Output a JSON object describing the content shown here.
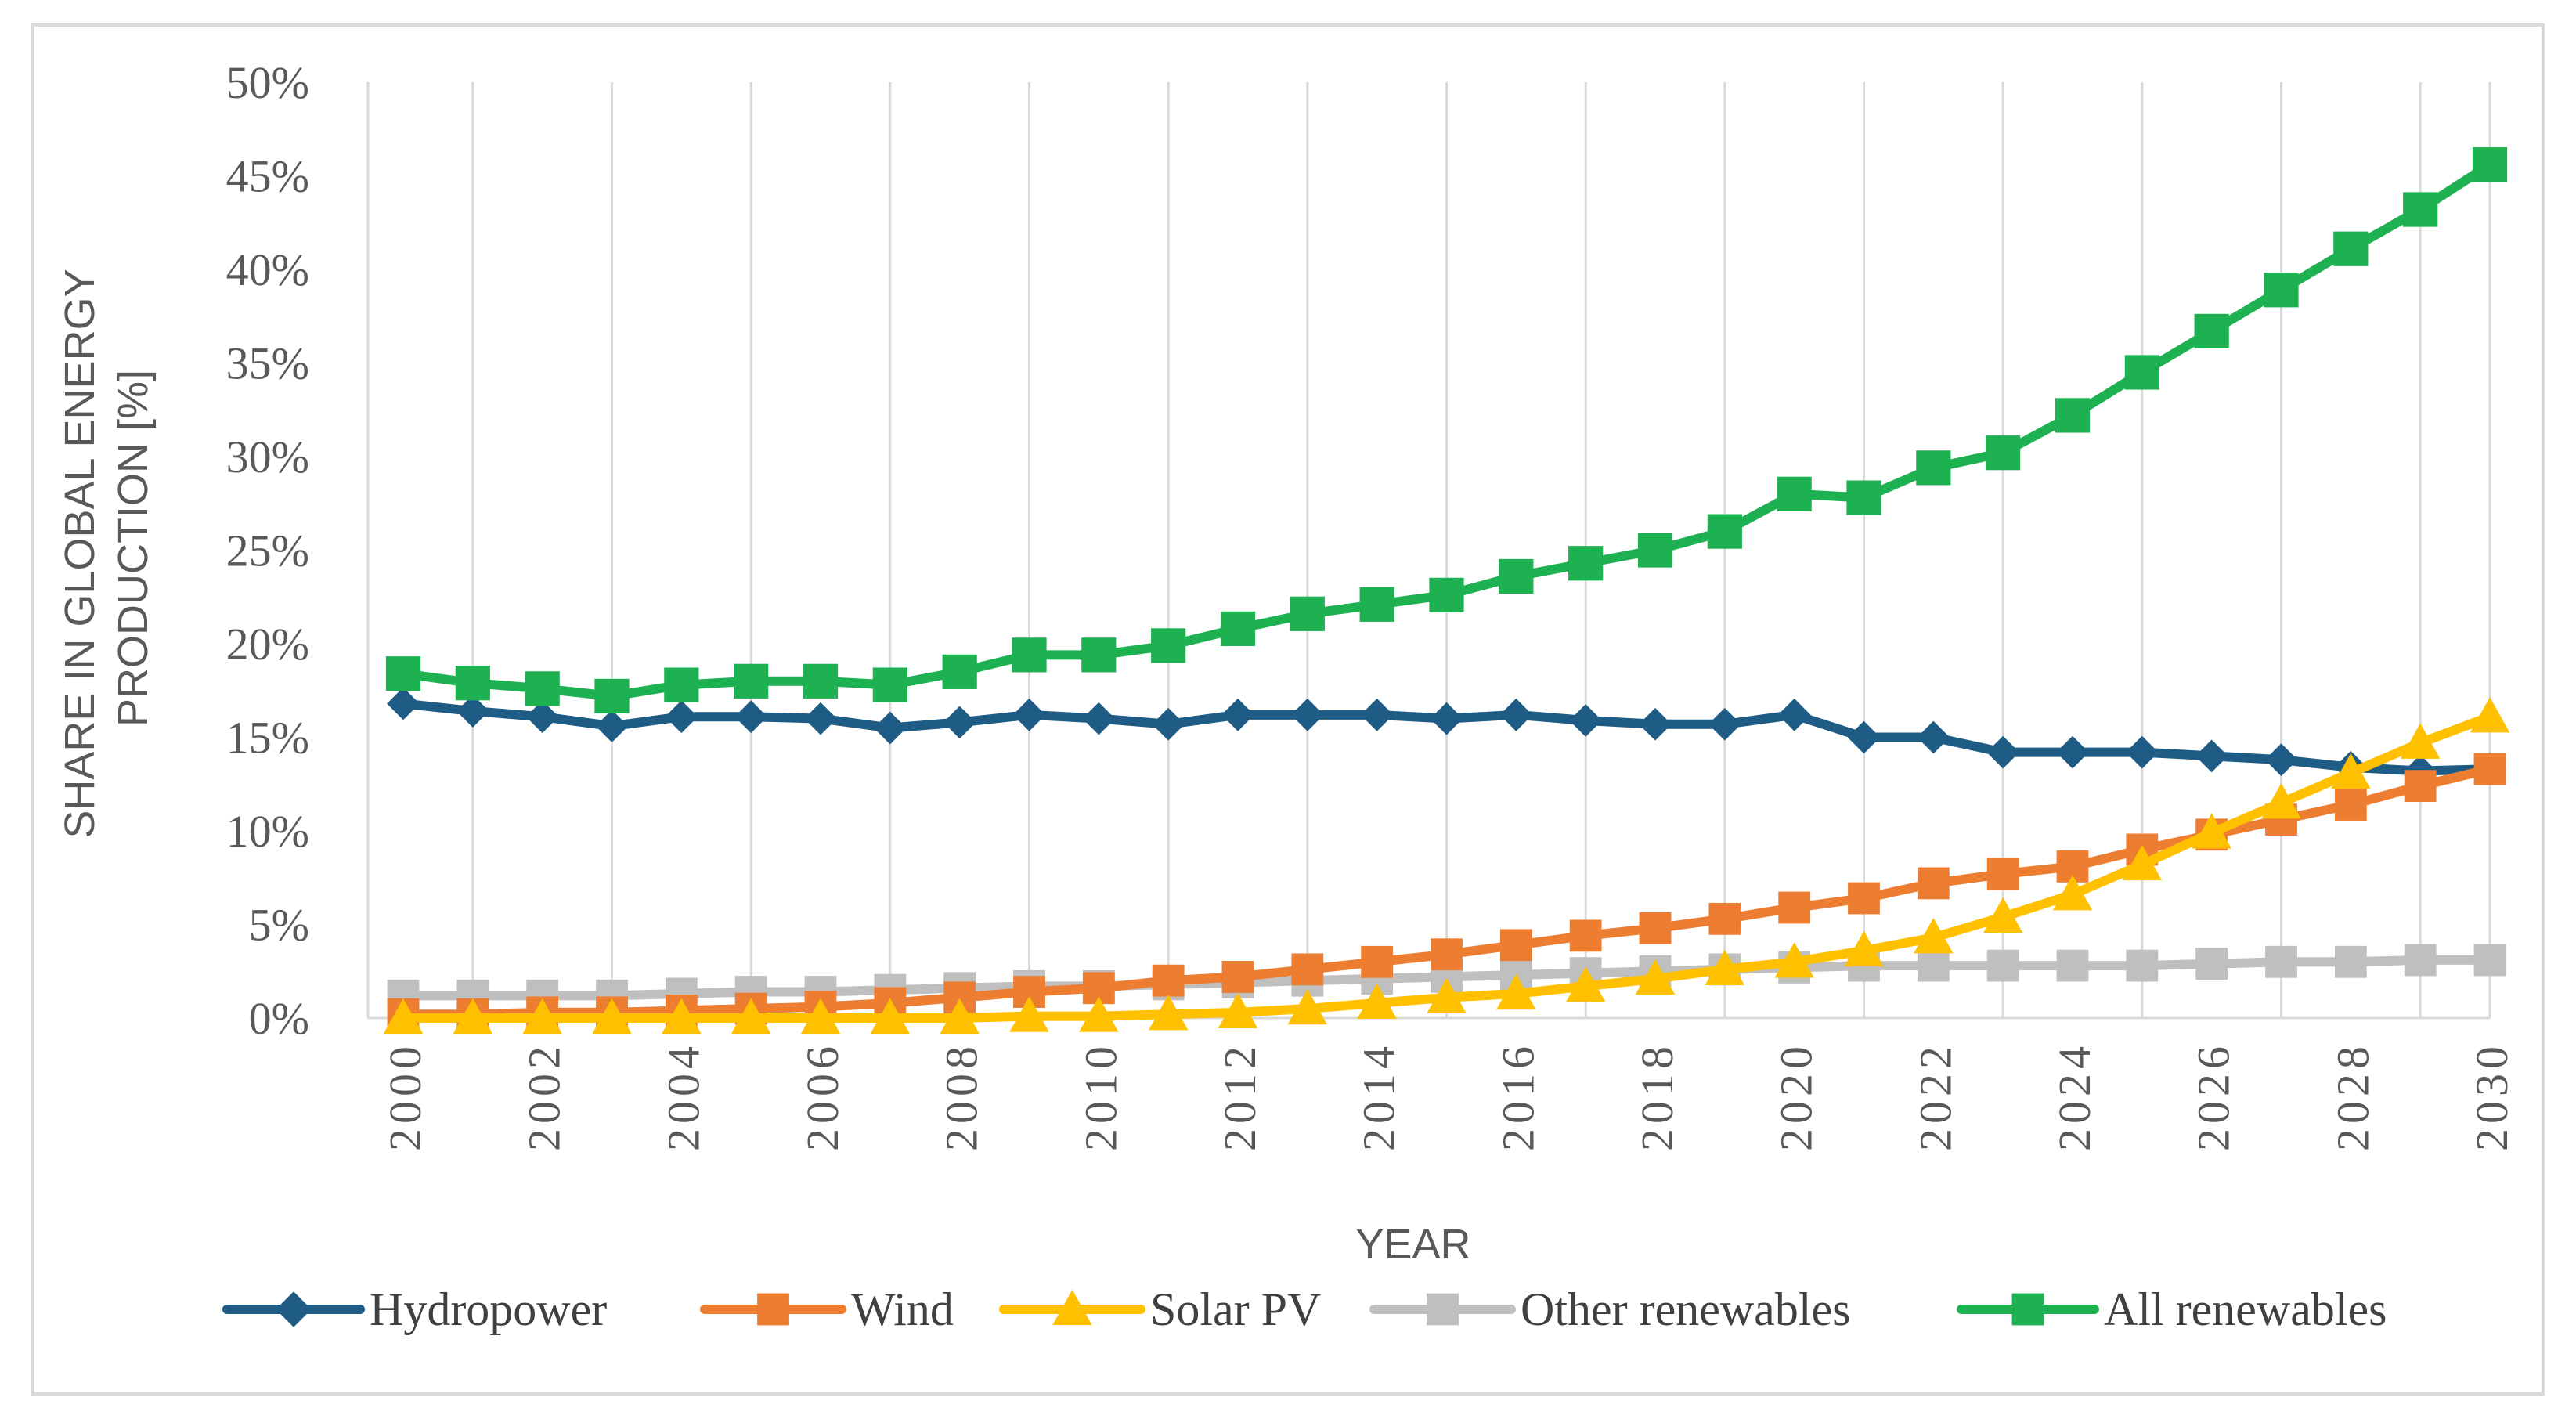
{
  "chart_data": {
    "type": "line",
    "title": "",
    "xlabel": "YEAR",
    "ylabel_line1": "SHARE IN GLOBAL ENERGY",
    "ylabel_line2": "PRODUCTION [%]",
    "ylim": [
      0,
      50
    ],
    "y_ticks": [
      0,
      5,
      10,
      15,
      20,
      25,
      30,
      35,
      40,
      45,
      50
    ],
    "y_tick_labels": [
      "0%",
      "5%",
      "10%",
      "15%",
      "20%",
      "25%",
      "30%",
      "35%",
      "40%",
      "45%",
      "50%"
    ],
    "x": [
      2000,
      2001,
      2002,
      2003,
      2004,
      2005,
      2006,
      2007,
      2008,
      2009,
      2010,
      2011,
      2012,
      2013,
      2014,
      2015,
      2016,
      2017,
      2018,
      2019,
      2020,
      2021,
      2022,
      2023,
      2024,
      2025,
      2026,
      2027,
      2028,
      2029,
      2030
    ],
    "x_tick_labels": [
      "2000",
      "2002",
      "2004",
      "2006",
      "2008",
      "2010",
      "2012",
      "2014",
      "2016",
      "2018",
      "2020",
      "2022",
      "2024",
      "2026",
      "2028",
      "2030"
    ],
    "grid": "vertical",
    "legend_position": "bottom",
    "series": [
      {
        "name": "Hydropower",
        "color": "#1f5c85",
        "marker": "diamond",
        "values": [
          16.8,
          16.4,
          16.1,
          15.6,
          16.1,
          16.1,
          16.0,
          15.5,
          15.8,
          16.2,
          16.0,
          15.7,
          16.2,
          16.2,
          16.2,
          16.0,
          16.2,
          15.9,
          15.7,
          15.7,
          16.2,
          15.0,
          15.0,
          14.2,
          14.2,
          14.2,
          14.0,
          13.8,
          13.4,
          13.2,
          13.3
        ]
      },
      {
        "name": "Wind",
        "color": "#ed7d31",
        "marker": "square",
        "values": [
          0.2,
          0.2,
          0.3,
          0.3,
          0.4,
          0.5,
          0.6,
          0.8,
          1.1,
          1.4,
          1.6,
          2.0,
          2.2,
          2.6,
          3.0,
          3.4,
          3.9,
          4.4,
          4.8,
          5.3,
          5.9,
          6.4,
          7.2,
          7.7,
          8.1,
          9.0,
          9.8,
          10.6,
          11.4,
          12.4,
          13.3
        ]
      },
      {
        "name": "Solar PV",
        "color": "#ffc000",
        "marker": "triangle",
        "values": [
          0.0,
          0.0,
          0.0,
          0.0,
          0.0,
          0.0,
          0.0,
          0.0,
          0.0,
          0.1,
          0.1,
          0.2,
          0.3,
          0.5,
          0.8,
          1.1,
          1.3,
          1.7,
          2.1,
          2.6,
          3.0,
          3.6,
          4.3,
          5.4,
          6.6,
          8.2,
          9.9,
          11.5,
          13.1,
          14.7,
          16.1
        ]
      },
      {
        "name": "Other renewables",
        "color": "#bfbfbf",
        "marker": "square",
        "values": [
          1.2,
          1.2,
          1.2,
          1.2,
          1.3,
          1.4,
          1.4,
          1.5,
          1.6,
          1.7,
          1.7,
          1.8,
          1.9,
          2.0,
          2.1,
          2.2,
          2.3,
          2.4,
          2.5,
          2.6,
          2.7,
          2.8,
          2.8,
          2.8,
          2.8,
          2.8,
          2.9,
          3.0,
          3.0,
          3.1,
          3.1
        ]
      },
      {
        "name": "All renewables",
        "color": "#1db152",
        "marker": "square",
        "values": [
          18.4,
          17.9,
          17.6,
          17.2,
          17.8,
          18.0,
          18.0,
          17.8,
          18.5,
          19.4,
          19.4,
          19.9,
          20.8,
          21.6,
          22.1,
          22.6,
          23.6,
          24.3,
          25.0,
          26.0,
          28.0,
          27.8,
          29.4,
          30.2,
          32.2,
          34.5,
          36.7,
          38.9,
          41.1,
          43.2,
          45.6
        ]
      }
    ]
  }
}
